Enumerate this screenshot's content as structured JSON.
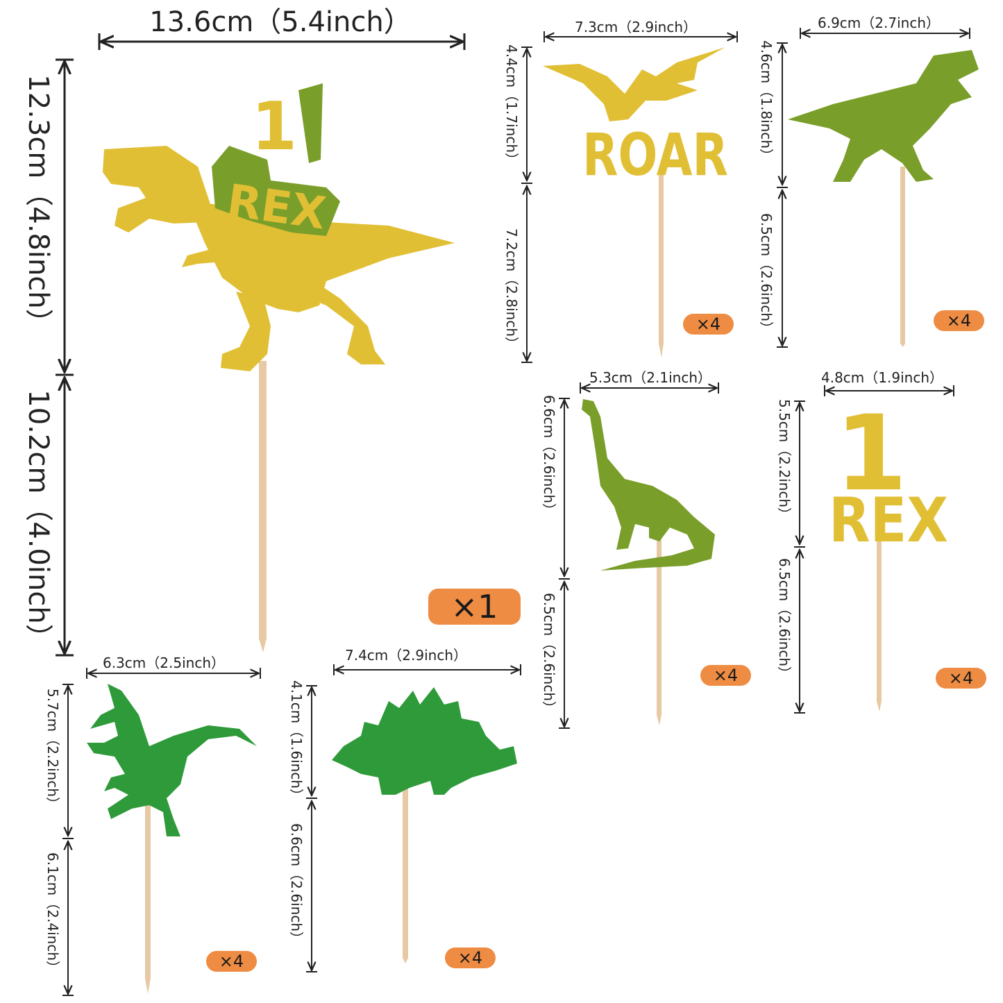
{
  "colors": {
    "gold": "#e1bf35",
    "olive": "#7a9e2a",
    "green": "#2e9a3a",
    "stick": "#e7c9a4",
    "badge": "#ee8c43"
  },
  "toppers": [
    {
      "id": "rex-big",
      "shape": "rex-trex-icon",
      "width": "13.6cm（5.4inch）",
      "height": "12.3cm（4.8inch）",
      "stick": "10.2cm（4.0inch）",
      "qty": "×1"
    },
    {
      "id": "pterodactyl-roar",
      "shape": "pterodactyl-roar-icon",
      "width": "7.3cm（2.9inch）",
      "height": "4.4cm（1.7inch）",
      "stick": "7.2cm（2.8inch）",
      "qty": "×4",
      "word": "ROAR"
    },
    {
      "id": "trex",
      "shape": "trex-icon",
      "width": "6.9cm（2.7inch）",
      "height": "4.6cm（1.8inch）",
      "stick": "6.5cm（2.6inch）",
      "qty": "×4"
    },
    {
      "id": "brachiosaurus",
      "shape": "brachiosaurus-icon",
      "width": "5.3cm（2.1inch）",
      "height": "6.6cm（2.6inch）",
      "stick": "6.5cm（2.6inch）",
      "qty": "×4"
    },
    {
      "id": "one-rex",
      "shape": "one-rex-icon",
      "width": "4.8cm（1.9inch）",
      "height": "5.5cm（2.2inch）",
      "stick": "6.5cm（2.6inch）",
      "qty": "×4",
      "number": "1",
      "word": "REX"
    },
    {
      "id": "raptor",
      "shape": "raptor-icon",
      "width": "6.3cm（2.5inch）",
      "height": "5.7cm（2.2inch）",
      "stick": "6.1cm（2.4inch）",
      "qty": "×4"
    },
    {
      "id": "stegosaurus",
      "shape": "stegosaurus-icon",
      "width": "7.4cm（2.9inch）",
      "height": "4.1cm（1.6inch）",
      "stick": "6.6cm（2.6inch）",
      "qty": "×4"
    }
  ]
}
